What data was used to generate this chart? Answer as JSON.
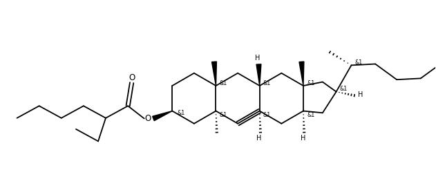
{
  "background_color": "#ffffff",
  "line_color": "#000000",
  "line_width": 1.3,
  "font_size": 6.5,
  "figsize": [
    6.31,
    2.72
  ],
  "dpi": 100,
  "xlim": [
    0,
    10.0
  ],
  "ylim": [
    0,
    4.3
  ]
}
